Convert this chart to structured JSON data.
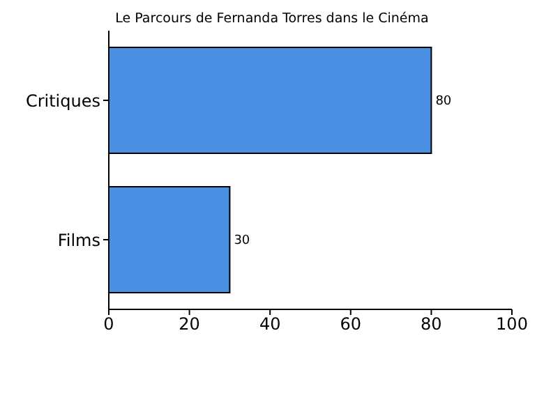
{
  "chart_data": {
    "type": "bar",
    "orientation": "horizontal",
    "title": "Le Parcours de Fernanda Torres dans le Cinéma",
    "categories": [
      "Critiques",
      "Films"
    ],
    "values": [
      80,
      30
    ],
    "color": "#4a90e2",
    "xlim": [
      0,
      100
    ],
    "xticks": [
      0,
      20,
      40,
      60,
      80,
      100
    ],
    "grid": false,
    "data_labels": true
  }
}
